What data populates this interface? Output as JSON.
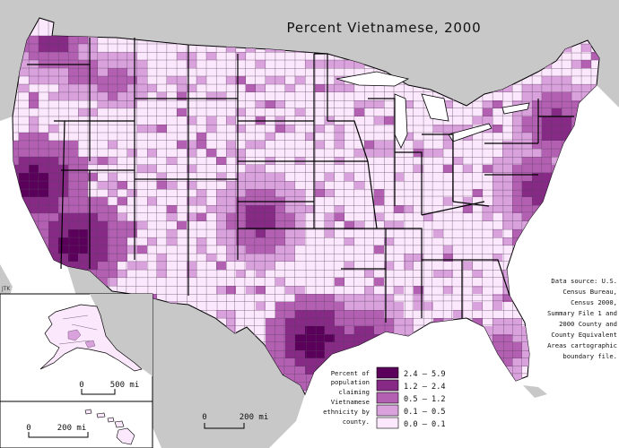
{
  "title": "Percent Vietnamese, 2000",
  "source_lines": [
    "Data source: U.S.",
    "Census Bureau,",
    "Census 2000,",
    "Summary File 1 and",
    "2000 County and",
    "County Equivalent",
    "Areas cartographic",
    "boundary file."
  ],
  "legend": {
    "caption": [
      "Percent of",
      "population",
      "claiming",
      "Vietnamese",
      "ethnicity by",
      "county."
    ],
    "classes": [
      {
        "label": "2.4 – 5.9",
        "color": "#5a005a"
      },
      {
        "label": "1.2 – 2.4",
        "color": "#862a86"
      },
      {
        "label": "0.5 – 1.2",
        "color": "#b360b3"
      },
      {
        "label": "0.1 – 0.5",
        "color": "#d9a2dc"
      },
      {
        "label": "0.0 – 0.1",
        "color": "#fce8fc"
      }
    ]
  },
  "scales": {
    "main": {
      "zero": "0",
      "label": "200 mi"
    },
    "alaska": {
      "zero": "0",
      "label": "500 mi"
    },
    "hawaii": {
      "zero": "0",
      "label": "200 mi"
    }
  },
  "credit": "JTK",
  "colors": {
    "ocean": "#ffffff",
    "land_outside": "#c8c8c8",
    "lowest_class": "#fce8fc",
    "state_border": "#000000",
    "county_border": "#5a4060"
  }
}
